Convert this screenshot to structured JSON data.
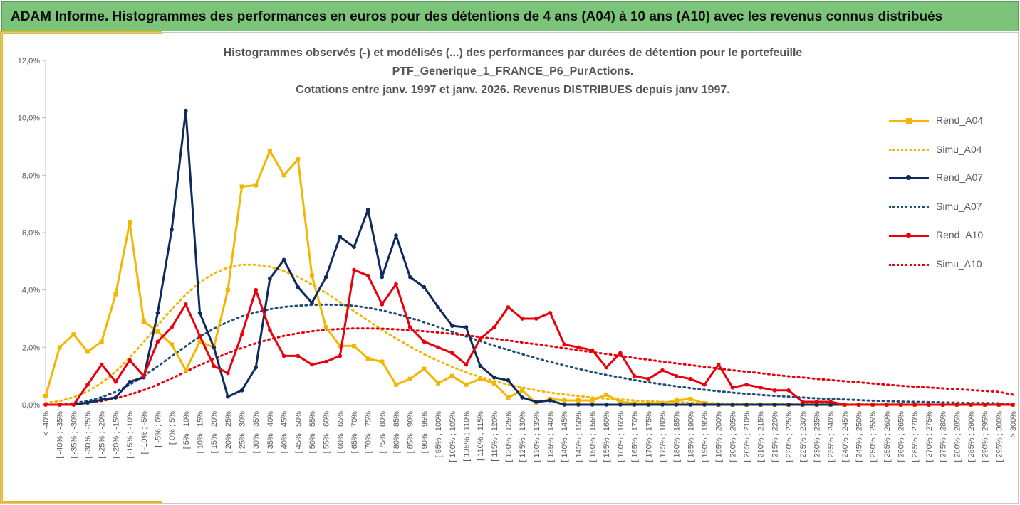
{
  "header": {
    "title": "ADAM Informe. Histogrammes des performances en euros pour des détentions de 4 ans (A04) à 10 ans (A10) avec les revenus connus distribués"
  },
  "chart_data": {
    "type": "line",
    "title_lines": [
      "Histogrammes observés (-) et modélisés (...) des performances par durées de détention pour le portefeuille",
      "PTF_Generique_1_FRANCE_P6_PurActions.",
      "Cotations entre janv. 1997 et janv. 2026. Revenus DISTRIBUES depuis janv 1997."
    ],
    "ylim": [
      0,
      12
    ],
    "y_ticks": [
      "0,0%",
      "2,0%",
      "4,0%",
      "6,0%",
      "8,0%",
      "10,0%",
      "12,0%"
    ],
    "y_tick_values": [
      0,
      2,
      4,
      6,
      8,
      10,
      12
    ],
    "categories": [
      "< -40%",
      "[ -40% ; -35%",
      "[ -35% ; -30%",
      "[ -30% ; -25%",
      "[ -25% ; -20%",
      "[ -20% ; -15%",
      "[ -15% ; -10%",
      "[ -10% ; -5%",
      "[ -5% ; 0%",
      "[ 0% ; 5%",
      "[ 5% ; 10%",
      "[ 10% ; 15%",
      "[ 15% ; 20%",
      "[ 20% ; 25%",
      "[ 25% ; 30%",
      "[ 30% ; 35%",
      "[ 35% ; 40%",
      "[ 40% ; 45%",
      "[ 45% ; 50%",
      "[ 50% ; 55%",
      "[ 55% ; 60%",
      "[ 60% ; 65%",
      "[ 65% ; 70%",
      "[ 70% ; 75%",
      "[ 75% ; 80%",
      "[ 80% ; 85%",
      "[ 85% ; 90%",
      "[ 90% ; 95%",
      "[ 95% ; 100%",
      "[ 100% ; 105%",
      "[ 105% ; 110%",
      "[ 110% ; 115%",
      "[ 115% ; 120%",
      "[ 120% ; 125%",
      "[ 125% ; 130%",
      "[ 130% ; 135%",
      "[ 135% ; 140%",
      "[ 140% ; 145%",
      "[ 145% ; 150%",
      "[ 150% ; 155%",
      "[ 155% ; 160%",
      "[ 160% ; 165%",
      "[ 165% ; 170%",
      "[ 170% ; 175%",
      "[ 175% ; 180%",
      "[ 180% ; 185%",
      "[ 185% ; 190%",
      "[ 190% ; 195%",
      "[ 195% ; 200%",
      "[ 200% ; 205%",
      "[ 205% ; 210%",
      "[ 210% ; 215%",
      "[ 215% ; 220%",
      "[ 220% ; 225%",
      "[ 225% ; 230%",
      "[ 230% ; 235%",
      "[ 235% ; 240%",
      "[ 240% ; 245%",
      "[ 245% ; 250%",
      "[ 250% ; 255%",
      "[ 255% ; 260%",
      "[ 260% ; 265%",
      "[ 265% ; 270%",
      "[ 270% ; 275%",
      "[ 275% ; 280%",
      "[ 280% ; 285%",
      "[ 285% ; 290%",
      "[ 290% ; 295%",
      "[ 295% ; 300%",
      "> 300%"
    ],
    "series": [
      {
        "name": "Rend_A04",
        "color": "#f2b705",
        "style": "solid",
        "marker": "square",
        "values": [
          0.3,
          2.0,
          2.45,
          1.85,
          2.2,
          3.85,
          6.35,
          2.9,
          2.55,
          2.1,
          1.2,
          2.2,
          2.0,
          4.0,
          7.6,
          7.65,
          8.85,
          8.0,
          8.55,
          4.5,
          2.7,
          2.05,
          2.05,
          1.6,
          1.5,
          0.7,
          0.9,
          1.25,
          0.75,
          1.0,
          0.7,
          0.9,
          0.75,
          0.25,
          0.5,
          0.05,
          0.2,
          0.15,
          0.15,
          0.15,
          0.35,
          0.1,
          0.05,
          0.05,
          0.05,
          0.15,
          0.2,
          0.05,
          0.0,
          0.0,
          0.0,
          0.0,
          0.0,
          0.0,
          0.0,
          0.0,
          0.0,
          0.0,
          0.0,
          0.0,
          0.0,
          0.0,
          0.0,
          0.0,
          0.0,
          0.0,
          0.0,
          0.0,
          0.0,
          0.0
        ]
      },
      {
        "name": "Simu_A04",
        "color": "#f2b705",
        "style": "dotted",
        "marker": "none",
        "values": [
          0.06,
          0.13,
          0.26,
          0.46,
          0.76,
          1.15,
          1.64,
          2.19,
          2.77,
          3.33,
          3.84,
          4.27,
          4.58,
          4.78,
          4.88,
          4.88,
          4.81,
          4.66,
          4.45,
          4.19,
          3.9,
          3.58,
          3.26,
          2.93,
          2.61,
          2.31,
          2.03,
          1.76,
          1.53,
          1.32,
          1.13,
          0.97,
          0.83,
          0.7,
          0.6,
          0.5,
          0.42,
          0.36,
          0.3,
          0.25,
          0.21,
          0.18,
          0.15,
          0.12,
          0.1,
          0.09,
          0.07,
          0.06,
          0.05,
          0.04,
          0.04,
          0.03,
          0.03,
          0.02,
          0.02,
          0.02,
          0.01,
          0.01,
          0.01,
          0.01,
          0.01,
          0.01,
          0.0,
          0.0,
          0.0,
          0.0,
          0.0,
          0.0,
          0.0,
          0.0
        ]
      },
      {
        "name": "Rend_A07",
        "color": "#0f2a5c",
        "style": "solid",
        "marker": "circle",
        "values": [
          0.0,
          0.0,
          0.0,
          0.07,
          0.17,
          0.25,
          0.8,
          0.95,
          3.2,
          6.1,
          10.25,
          3.2,
          2.0,
          0.28,
          0.5,
          1.3,
          4.4,
          5.05,
          4.1,
          3.55,
          4.45,
          5.85,
          5.5,
          6.8,
          4.45,
          5.9,
          4.45,
          4.1,
          3.4,
          2.75,
          2.7,
          1.35,
          0.95,
          0.85,
          0.25,
          0.1,
          0.15,
          0.0,
          0.0,
          0.0,
          0.0,
          0.0,
          0.0,
          0.0,
          0.0,
          0.0,
          0.0,
          0.0,
          0.0,
          0.0,
          0.0,
          0.0,
          0.0,
          0.0,
          0.0,
          0.0,
          0.0,
          0.0,
          0.0,
          0.0,
          0.0,
          0.0,
          0.0,
          0.0,
          0.0,
          0.0,
          0.0,
          0.0,
          0.0,
          0.0
        ]
      },
      {
        "name": "Simu_A07",
        "color": "#1f4e79",
        "style": "dotted",
        "marker": "none",
        "values": [
          0.0,
          0.0,
          0.05,
          0.13,
          0.26,
          0.45,
          0.7,
          1.0,
          1.34,
          1.69,
          2.04,
          2.37,
          2.65,
          2.89,
          3.08,
          3.22,
          3.33,
          3.41,
          3.45,
          3.48,
          3.49,
          3.48,
          3.45,
          3.38,
          3.29,
          3.17,
          3.03,
          2.87,
          2.71,
          2.54,
          2.38,
          2.22,
          2.06,
          1.91,
          1.76,
          1.62,
          1.49,
          1.37,
          1.25,
          1.14,
          1.04,
          0.95,
          0.86,
          0.78,
          0.71,
          0.64,
          0.58,
          0.52,
          0.47,
          0.42,
          0.38,
          0.34,
          0.31,
          0.28,
          0.25,
          0.22,
          0.2,
          0.18,
          0.16,
          0.14,
          0.13,
          0.11,
          0.1,
          0.09,
          0.08,
          0.07,
          0.06,
          0.06,
          0.05,
          0.0
        ]
      },
      {
        "name": "Rend_A10",
        "color": "#e8000b",
        "style": "solid",
        "marker": "circle",
        "values": [
          0.0,
          0.0,
          0.0,
          0.7,
          1.4,
          0.8,
          1.55,
          1.0,
          2.2,
          2.7,
          3.5,
          2.4,
          1.35,
          1.1,
          2.45,
          4.0,
          2.6,
          1.7,
          1.7,
          1.4,
          1.5,
          1.7,
          4.7,
          4.5,
          3.5,
          4.2,
          2.7,
          2.2,
          2.0,
          1.8,
          1.4,
          2.3,
          2.7,
          3.4,
          3.0,
          3.0,
          3.2,
          2.1,
          2.0,
          1.9,
          1.3,
          1.8,
          1.0,
          0.9,
          1.2,
          1.0,
          0.9,
          0.7,
          1.4,
          0.6,
          0.7,
          0.6,
          0.5,
          0.5,
          0.1,
          0.1,
          0.1,
          0.0,
          0.0,
          0.0,
          0.0,
          0.0,
          0.0,
          0.0,
          0.0,
          0.0,
          0.0,
          0.0,
          0.0,
          0.0
        ]
      },
      {
        "name": "Simu_A10",
        "color": "#e8000b",
        "style": "dotted",
        "marker": "none",
        "values": [
          0.0,
          0.0,
          0.03,
          0.07,
          0.13,
          0.22,
          0.35,
          0.51,
          0.7,
          0.92,
          1.15,
          1.38,
          1.6,
          1.8,
          1.98,
          2.14,
          2.28,
          2.4,
          2.49,
          2.56,
          2.61,
          2.64,
          2.66,
          2.66,
          2.65,
          2.63,
          2.6,
          2.56,
          2.52,
          2.47,
          2.42,
          2.36,
          2.3,
          2.24,
          2.17,
          2.11,
          2.04,
          1.97,
          1.9,
          1.83,
          1.77,
          1.7,
          1.63,
          1.57,
          1.5,
          1.44,
          1.38,
          1.32,
          1.26,
          1.2,
          1.15,
          1.1,
          1.04,
          0.99,
          0.95,
          0.9,
          0.86,
          0.82,
          0.78,
          0.74,
          0.7,
          0.66,
          0.63,
          0.6,
          0.57,
          0.54,
          0.51,
          0.48,
          0.45,
          0.35
        ]
      }
    ]
  }
}
